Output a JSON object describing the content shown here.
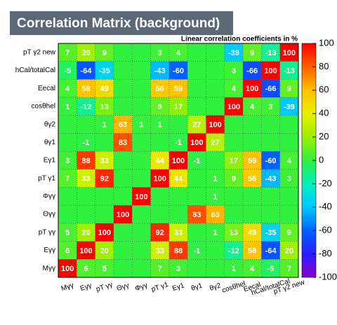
{
  "chart_data": {
    "type": "heatmap",
    "title": "Correlation Matrix (background)",
    "subtitle": "Linear correlation coefficients in %",
    "x_categories": [
      "Mγγ",
      "Eγγ",
      "pT γγ",
      "Θγγ",
      "Φγγ",
      "pT γ1",
      "Eγ1",
      "θγ1",
      "θγ2",
      "cosθhel",
      "Eecal",
      "hCal/totalCal",
      "pT γ2 new"
    ],
    "y_categories": [
      "pT γ2 new",
      "hCal/totalCal",
      "Eecal",
      "cosθhel",
      "θγ2",
      "θγ1",
      "Eγ1",
      "pT γ1",
      "Φγγ",
      "Θγγ",
      "pT γγ",
      "Eγγ",
      "Mγγ"
    ],
    "z": [
      [
        7,
        20,
        9,
        0,
        0,
        3,
        4,
        0,
        0,
        -39,
        9,
        -13,
        100
      ],
      [
        -5,
        -64,
        -35,
        0,
        0,
        -43,
        -60,
        0,
        0,
        3,
        -66,
        100,
        -13
      ],
      [
        4,
        58,
        49,
        0,
        0,
        56,
        59,
        0,
        0,
        4,
        100,
        -66,
        9
      ],
      [
        1,
        -12,
        13,
        0,
        0,
        9,
        17,
        0,
        0,
        100,
        4,
        3,
        -39
      ],
      [
        0,
        0,
        1,
        63,
        1,
        1,
        0,
        27,
        100,
        0,
        0,
        0,
        0
      ],
      [
        0,
        -1,
        0,
        83,
        0,
        0,
        -1,
        100,
        27,
        0,
        0,
        0,
        0
      ],
      [
        3,
        88,
        33,
        0,
        0,
        44,
        100,
        -1,
        0,
        17,
        59,
        -60,
        4
      ],
      [
        7,
        33,
        92,
        0,
        0,
        100,
        44,
        0,
        1,
        9,
        56,
        -43,
        3
      ],
      [
        0,
        0,
        0,
        0,
        100,
        0,
        0,
        0,
        1,
        0,
        0,
        0,
        0
      ],
      [
        0,
        0,
        0,
        100,
        0,
        0,
        0,
        83,
        63,
        0,
        0,
        0,
        0
      ],
      [
        5,
        20,
        100,
        0,
        0,
        92,
        33,
        0,
        1,
        13,
        49,
        -35,
        9
      ],
      [
        6,
        100,
        20,
        0,
        0,
        33,
        88,
        -1,
        0,
        -12,
        58,
        -64,
        20
      ],
      [
        100,
        6,
        5,
        0,
        0,
        7,
        3,
        0,
        0,
        1,
        4,
        -5,
        7
      ]
    ],
    "zlim": [
      -100,
      100
    ],
    "zticks": [
      -100,
      -80,
      -60,
      -40,
      -20,
      0,
      20,
      40,
      60,
      80,
      100
    ],
    "colorscale": [
      "#8c00c8",
      "#2a1cff",
      "#0062ff",
      "#00c8ff",
      "#00f0c0",
      "#30f040",
      "#9cf000",
      "#e8f000",
      "#ffc000",
      "#ff6000",
      "#ff0000"
    ]
  }
}
